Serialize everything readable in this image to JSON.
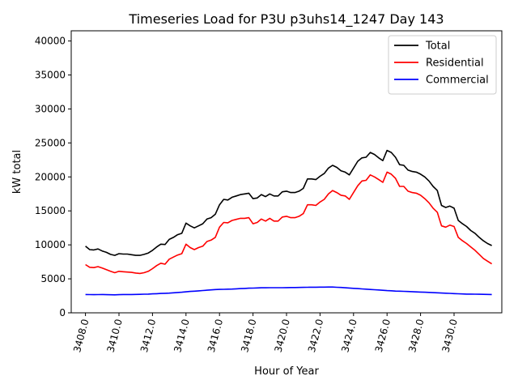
{
  "chart_data": {
    "type": "line",
    "title": "Timeseries Load for P3U p3uhs14_1247  Day 143",
    "xlabel": "Hour of Year",
    "ylabel": "kW total",
    "xlim": [
      3407.15,
      3432.85
    ],
    "ylim": [
      0,
      41500
    ],
    "grid": false,
    "legend_position": "top-right",
    "x_ticks": [
      3408,
      3410,
      3412,
      3414,
      3416,
      3418,
      3420,
      3422,
      3424,
      3426,
      3428,
      3430
    ],
    "x_tick_labels": [
      "3408.0",
      "3410.0",
      "3412.0",
      "3414.0",
      "3416.0",
      "3418.0",
      "3420.0",
      "3422.0",
      "3424.0",
      "3426.0",
      "3428.0",
      "3430.0"
    ],
    "y_ticks": [
      0,
      5000,
      10000,
      15000,
      20000,
      25000,
      30000,
      35000,
      40000
    ],
    "y_tick_labels": [
      "0",
      "5000",
      "10000",
      "15000",
      "20000",
      "25000",
      "30000",
      "35000",
      "40000"
    ],
    "x_start": 3408,
    "x_step": 0.25,
    "series": [
      {
        "name": "Total",
        "color": "#000000",
        "values": [
          9800,
          9300,
          9250,
          9400,
          9100,
          8900,
          8600,
          8450,
          8700,
          8650,
          8650,
          8550,
          8450,
          8450,
          8600,
          8800,
          9200,
          9700,
          10100,
          10050,
          10800,
          11100,
          11500,
          11700,
          13200,
          12800,
          12500,
          12800,
          13100,
          13800,
          14000,
          14500,
          15900,
          16700,
          16600,
          17000,
          17200,
          17400,
          17500,
          17600,
          16800,
          16900,
          17400,
          17100,
          17500,
          17200,
          17200,
          17800,
          17900,
          17700,
          17700,
          17900,
          18300,
          19700,
          19700,
          19600,
          20100,
          20500,
          21300,
          21700,
          21400,
          20900,
          20700,
          20300,
          21300,
          22300,
          22800,
          22900,
          23600,
          23300,
          22800,
          22400,
          23900,
          23600,
          22900,
          21800,
          21700,
          21000,
          20800,
          20700,
          20400,
          20000,
          19400,
          18600,
          18000,
          15800,
          15500,
          15700,
          15400,
          13600,
          13100,
          12700,
          12100,
          11700,
          11100,
          10600,
          10200,
          9900
        ]
      },
      {
        "name": "Residential",
        "color": "#ff0000",
        "values": [
          7100,
          6700,
          6650,
          6800,
          6600,
          6350,
          6100,
          5900,
          6100,
          6050,
          6000,
          5950,
          5850,
          5800,
          5900,
          6100,
          6500,
          6950,
          7300,
          7150,
          7900,
          8200,
          8500,
          8700,
          10100,
          9600,
          9300,
          9600,
          9800,
          10500,
          10700,
          11100,
          12600,
          13300,
          13250,
          13600,
          13750,
          13900,
          13900,
          14000,
          13100,
          13300,
          13800,
          13500,
          13900,
          13500,
          13500,
          14100,
          14200,
          14000,
          14000,
          14200,
          14600,
          15900,
          15900,
          15800,
          16300,
          16700,
          17500,
          18000,
          17700,
          17300,
          17200,
          16700,
          17700,
          18700,
          19400,
          19500,
          20300,
          20000,
          19600,
          19200,
          20700,
          20400,
          19800,
          18600,
          18600,
          17900,
          17700,
          17600,
          17300,
          16800,
          16200,
          15400,
          14800,
          12800,
          12600,
          12900,
          12700,
          11100,
          10600,
          10200,
          9700,
          9200,
          8600,
          8000,
          7600,
          7200
        ]
      },
      {
        "name": "Commercial",
        "color": "#0000ff",
        "values": [
          2700,
          2680,
          2670,
          2680,
          2690,
          2670,
          2660,
          2650,
          2670,
          2690,
          2700,
          2700,
          2710,
          2720,
          2740,
          2760,
          2790,
          2820,
          2850,
          2870,
          2900,
          2940,
          2990,
          3030,
          3090,
          3150,
          3190,
          3230,
          3280,
          3330,
          3380,
          3420,
          3450,
          3460,
          3480,
          3500,
          3530,
          3560,
          3590,
          3620,
          3640,
          3660,
          3680,
          3690,
          3700,
          3700,
          3700,
          3700,
          3710,
          3720,
          3720,
          3730,
          3740,
          3760,
          3770,
          3770,
          3780,
          3780,
          3790,
          3790,
          3760,
          3730,
          3690,
          3650,
          3600,
          3560,
          3520,
          3480,
          3440,
          3400,
          3360,
          3310,
          3270,
          3240,
          3200,
          3180,
          3160,
          3140,
          3110,
          3080,
          3050,
          3030,
          3000,
          2970,
          2940,
          2910,
          2890,
          2860,
          2830,
          2800,
          2780,
          2760,
          2750,
          2740,
          2730,
          2720,
          2710,
          2700
        ]
      }
    ]
  }
}
